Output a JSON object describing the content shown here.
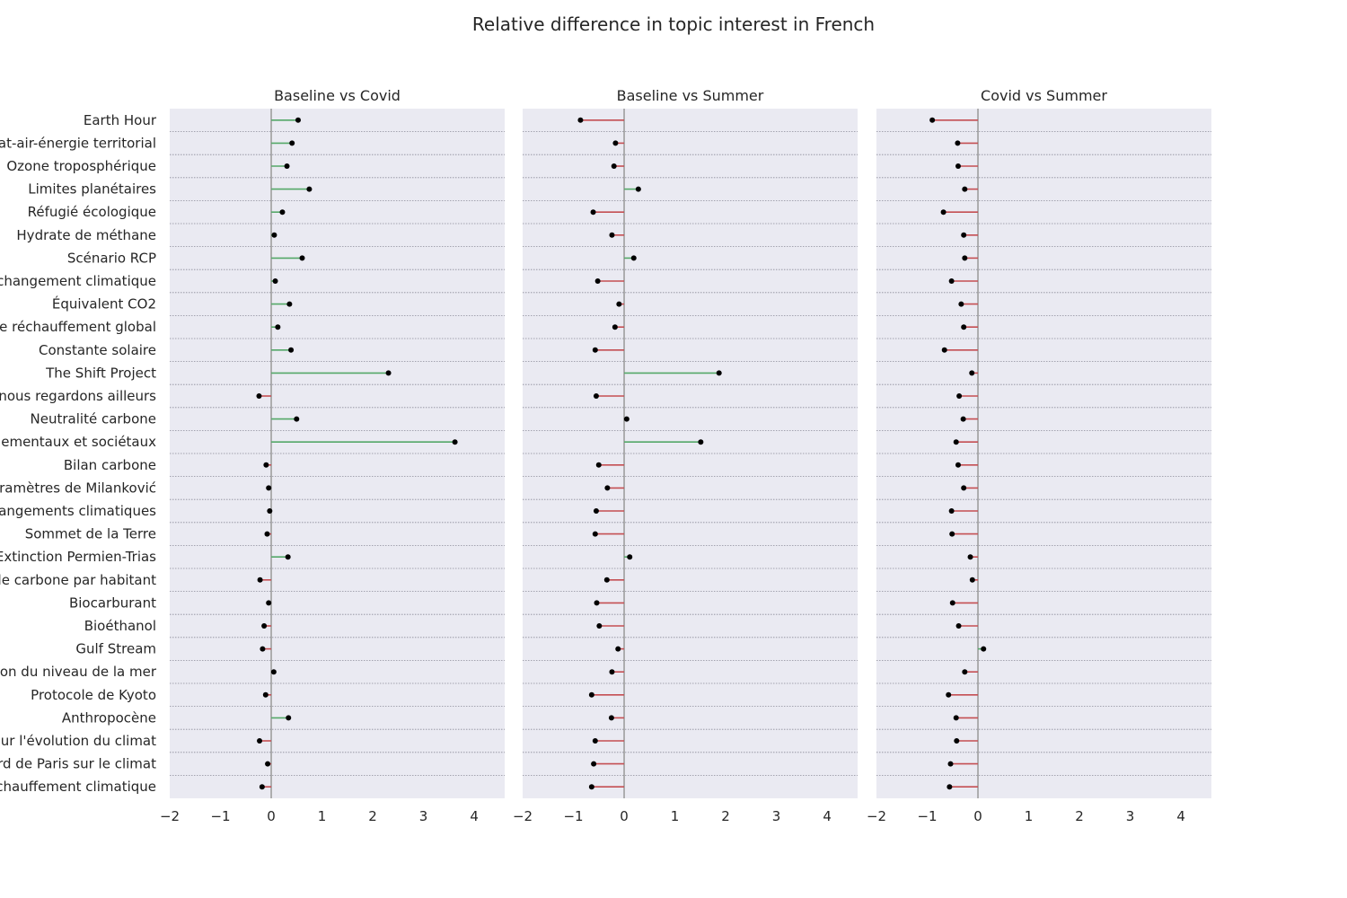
{
  "chart_data": {
    "type": "lollipop",
    "title": "Relative difference in topic interest in French",
    "xlim": [
      -2,
      4.6
    ],
    "xticks": [
      "−2",
      "−1",
      "0",
      "1",
      "2",
      "3",
      "4"
    ],
    "xtick_values": [
      -2,
      -1,
      0,
      1,
      2,
      3,
      4
    ],
    "grid": true,
    "colors": {
      "positive": "#55a868",
      "negative": "#c44e52",
      "point": "#000000",
      "zero_line": "#999999",
      "panel_bg": "#eaeaf2"
    },
    "categories": [
      "Earth Hour",
      "Plan climat-air-énergie territorial",
      "Ozone troposphérique",
      "Limites planétaires",
      "Réfugié écologique",
      "Hydrate de méthane",
      "Scénario RCP",
      "Adaptation au changement climatique",
      "Équivalent CO2",
      "Potentiel de réchauffement global",
      "Constante solaire",
      "The Shift Project",
      "Notre maison brûle et nous regardons ailleurs",
      "Neutralité carbone",
      "Effets du changement climatique sur les écosystèmes environnementaux et sociétaux",
      "Bilan carbone",
      "Paramètres de Milanković",
      "Convention-cadre des Nations unies sur les changements climatiques",
      "Sommet de la Terre",
      "Extinction Permien-Trias",
      "Liste des pays par émissions de dioxyde de carbone par habitant",
      "Biocarburant",
      "Bioéthanol",
      "Gulf Stream",
      "Élévation du niveau de la mer",
      "Protocole de Kyoto",
      "Anthropocène",
      "Groupe d'experts intergouvernemental sur l'évolution du climat",
      "Accord de Paris sur le climat",
      "Réchauffement climatique"
    ],
    "panels": [
      {
        "title": "Baseline vs Covid",
        "values": [
          0.53,
          0.41,
          0.31,
          0.75,
          0.22,
          0.06,
          0.61,
          0.08,
          0.36,
          0.13,
          0.39,
          2.31,
          -0.24,
          0.5,
          3.62,
          -0.1,
          -0.05,
          -0.03,
          -0.08,
          0.33,
          -0.22,
          -0.05,
          -0.14,
          -0.17,
          0.05,
          -0.11,
          0.34,
          -0.23,
          -0.07,
          -0.18
        ]
      },
      {
        "title": "Baseline vs Summer",
        "values": [
          -0.86,
          -0.17,
          -0.2,
          0.28,
          -0.61,
          -0.24,
          0.19,
          -0.52,
          -0.1,
          -0.18,
          -0.57,
          1.87,
          -0.55,
          0.05,
          1.51,
          -0.5,
          -0.33,
          -0.55,
          -0.57,
          0.11,
          -0.34,
          -0.54,
          -0.49,
          -0.12,
          -0.24,
          -0.64,
          -0.25,
          -0.57,
          -0.6,
          -0.64
        ]
      },
      {
        "title": "Covid vs Summer",
        "values": [
          -0.9,
          -0.4,
          -0.39,
          -0.26,
          -0.68,
          -0.28,
          -0.26,
          -0.52,
          -0.33,
          -0.28,
          -0.66,
          -0.12,
          -0.37,
          -0.29,
          -0.43,
          -0.39,
          -0.28,
          -0.52,
          -0.51,
          -0.15,
          -0.11,
          -0.5,
          -0.38,
          0.11,
          -0.26,
          -0.58,
          -0.43,
          -0.42,
          -0.54,
          -0.56
        ]
      }
    ]
  }
}
